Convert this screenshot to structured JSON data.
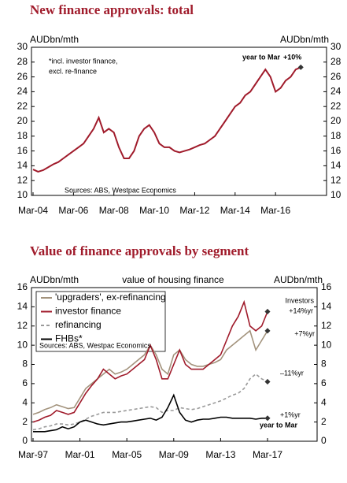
{
  "chart_data": [
    {
      "type": "line",
      "title": "New finance approvals: total",
      "y_label": "AUDbn/mth",
      "y2_label": "AUDbn/mth",
      "categories": [
        "Mar-04",
        null,
        null,
        null,
        null,
        null,
        null,
        null,
        "Mar-06",
        null,
        null,
        null,
        null,
        null,
        null,
        null,
        "Mar-08",
        null,
        null,
        null,
        null,
        null,
        null,
        null,
        "Mar-10",
        null,
        null,
        null,
        null,
        null,
        null,
        null,
        "Mar-12",
        null,
        null,
        null,
        null,
        null,
        null,
        null,
        "Mar-14",
        null,
        null,
        null,
        null,
        null,
        null,
        null,
        "Mar-16",
        null,
        null,
        null,
        null,
        null
      ],
      "series": [
        {
          "name": null,
          "color": "#a01b2b",
          "values": [
            13.5,
            13.2,
            13.4,
            13.8,
            14.2,
            14.5,
            15.0,
            15.5,
            16.0,
            16.5,
            17.0,
            18.0,
            19.0,
            20.5,
            18.5,
            19.0,
            18.5,
            16.5,
            15.0,
            15.0,
            16.0,
            18.0,
            19.0,
            19.5,
            18.5,
            17.0,
            16.5,
            16.5,
            16.0,
            15.8,
            16.0,
            16.2,
            16.5,
            16.8,
            17.0,
            17.5,
            18.0,
            19.0,
            20.0,
            21.0,
            22.0,
            22.5,
            23.5,
            24.0,
            25.0,
            26.0,
            27.0,
            26.0,
            24.0,
            24.5,
            25.5,
            26.0,
            27.0,
            27.3
          ]
        }
      ],
      "ylim": [
        10,
        30
      ],
      "yticks": [
        10,
        12,
        14,
        16,
        18,
        20,
        22,
        24,
        26,
        28,
        30
      ],
      "y2lim": [
        10,
        30
      ],
      "y2ticks": [
        10,
        12,
        14,
        16,
        18,
        20,
        22,
        24,
        26,
        28,
        30
      ],
      "annotations": [
        "*incl. investor finance,",
        "excl. re-finance",
        "Sources: ABS, Westpac Economics",
        "year to Mar",
        "+10%"
      ]
    },
    {
      "type": "line",
      "title": "Value of finance approvals by segment",
      "subtitle": "value of housing finance",
      "y_label": "AUDbn/mth",
      "y2_label": "AUDbn/mth",
      "categories": [
        "Mar-97",
        null,
        null,
        null,
        null,
        null,
        null,
        null,
        "Mar-01",
        null,
        null,
        null,
        null,
        null,
        null,
        null,
        "Mar-05",
        null,
        null,
        null,
        null,
        null,
        null,
        null,
        "Mar-09",
        null,
        null,
        null,
        null,
        null,
        null,
        null,
        "Mar-13",
        null,
        null,
        null,
        null,
        null,
        null,
        null,
        "Mar-17"
      ],
      "series": [
        {
          "name": "'upgraders', ex-refinancing",
          "color": "#a3937d",
          "values": [
            2.8,
            3.0,
            3.3,
            3.5,
            3.8,
            3.6,
            3.4,
            3.5,
            4.5,
            5.5,
            6.0,
            6.5,
            7.0,
            7.5,
            7.0,
            7.2,
            7.5,
            8.0,
            8.5,
            9.0,
            10.0,
            9.0,
            7.5,
            7.0,
            9.0,
            9.5,
            8.5,
            8.0,
            7.8,
            7.8,
            8.0,
            8.2,
            8.5,
            9.5,
            10.0,
            10.5,
            11.0,
            11.5,
            9.5,
            10.5,
            11.5
          ]
        },
        {
          "name": "investor finance",
          "color": "#a01b2b",
          "values": [
            2.0,
            2.2,
            2.5,
            2.7,
            3.2,
            3.0,
            2.8,
            3.0,
            4.0,
            5.0,
            5.8,
            6.5,
            7.5,
            7.0,
            6.5,
            6.8,
            7.0,
            7.5,
            8.0,
            8.5,
            10.0,
            8.5,
            6.5,
            6.5,
            8.0,
            9.5,
            8.0,
            7.5,
            7.5,
            7.5,
            8.0,
            8.5,
            9.0,
            10.5,
            12.0,
            13.0,
            14.5,
            12.0,
            11.5,
            12.0,
            13.5
          ]
        },
        {
          "name": "refinancing",
          "color": "#9a9a9a",
          "dashed": true,
          "values": [
            1.2,
            1.3,
            1.5,
            1.6,
            1.8,
            1.8,
            1.7,
            1.8,
            2.0,
            2.3,
            2.6,
            2.8,
            3.0,
            3.0,
            3.0,
            3.1,
            3.2,
            3.3,
            3.4,
            3.5,
            3.6,
            3.5,
            3.0,
            3.2,
            3.2,
            3.5,
            3.4,
            3.3,
            3.4,
            3.6,
            3.8,
            4.0,
            4.2,
            4.5,
            4.8,
            5.0,
            5.5,
            6.5,
            7.0,
            6.5,
            6.2
          ]
        },
        {
          "name": "FHBs*",
          "color": "#000000",
          "values": [
            1.0,
            1.0,
            1.0,
            1.1,
            1.2,
            1.5,
            1.3,
            1.5,
            2.0,
            2.2,
            2.0,
            1.8,
            1.7,
            1.8,
            1.9,
            2.0,
            2.0,
            2.1,
            2.2,
            2.3,
            2.4,
            2.2,
            2.5,
            3.5,
            4.8,
            3.0,
            2.2,
            2.0,
            2.2,
            2.3,
            2.3,
            2.4,
            2.5,
            2.5,
            2.4,
            2.4,
            2.4,
            2.4,
            2.3,
            2.4,
            2.4
          ]
        }
      ],
      "ylim": [
        0,
        16
      ],
      "yticks": [
        0,
        2,
        4,
        6,
        8,
        10,
        12,
        14,
        16
      ],
      "y2lim": [
        0,
        16
      ],
      "y2ticks": [
        0,
        2,
        4,
        6,
        8,
        10,
        12,
        14,
        16
      ],
      "annotations": [
        "Investors",
        "+14%yr",
        "+7%yr",
        "–11%yr",
        "+1%yr",
        "year to Mar",
        "Sources: ABS, Westpac Economics"
      ]
    }
  ]
}
